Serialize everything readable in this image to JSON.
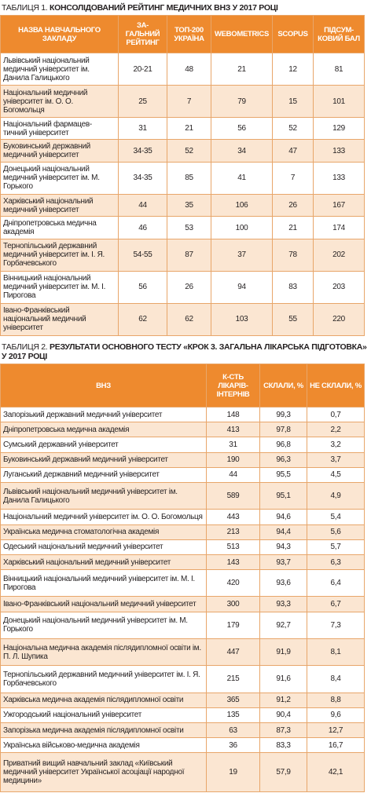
{
  "table1": {
    "label": "ТАБЛИЦЯ 1.",
    "title": "КОНСОЛІДОВАНИЙ РЕЙТИНГ МЕДИЧНИХ ВНЗ У 2017 РОЦІ",
    "headers": [
      "НАЗВА НАВЧАЛЬНОГО ЗАКЛАДУ",
      "ЗА-ГАЛЬНИЙ РЕЙТИНГ",
      "ТОП-200 УКРАЇНА",
      "WEBOMETRICS",
      "SCOPUS",
      "ПІДСУМ-КОВИЙ БАЛ"
    ],
    "rows": [
      [
        "Львівський національний медичний університет ім. Данила Галицького",
        "20-21",
        "48",
        "21",
        "12",
        "81"
      ],
      [
        "Національний медичний університет ім. О. О. Богомольця",
        "25",
        "7",
        "79",
        "15",
        "101"
      ],
      [
        "Національний фармацев-тичний університет",
        "31",
        "21",
        "56",
        "52",
        "129"
      ],
      [
        "Буковинський державний медичний університет",
        "34-35",
        "52",
        "34",
        "47",
        "133"
      ],
      [
        "Донецький національний медичний університет ім. М. Горького",
        "34-35",
        "85",
        "41",
        "7",
        "133"
      ],
      [
        "Харківський національний медичний університет",
        "44",
        "35",
        "106",
        "26",
        "167"
      ],
      [
        "Дніпропетровська медична академія",
        "46",
        "53",
        "100",
        "21",
        "174"
      ],
      [
        "Тернопільський державний медичний університет ім. І. Я. Горбачевського",
        "54-55",
        "87",
        "37",
        "78",
        "202"
      ],
      [
        "Вінницький національний медичний університет ім. М. І. Пирогова",
        "56",
        "26",
        "94",
        "83",
        "203"
      ],
      [
        "Івано-Франківський національний медичний університет",
        "62",
        "62",
        "103",
        "55",
        "220"
      ]
    ]
  },
  "table2": {
    "label": "ТАБЛИЦЯ 2.",
    "title": "РЕЗУЛЬТАТИ ОСНОВНОГО ТЕСТУ «КРОК 3. ЗАГАЛЬНА ЛІКАРСЬКА ПІДГОТОВКА» У 2017 РОЦІ",
    "headers": [
      "ВНЗ",
      "К-СТЬ ЛІКАРІВ-ІНТЕРНІВ",
      "СКЛАЛИ, %",
      "НЕ СКЛАЛИ, %"
    ],
    "rows": [
      [
        "Запорізький державний медичний університет",
        "148",
        "99,3",
        "0,7"
      ],
      [
        "Дніпропетровська медична академія",
        "413",
        "97,8",
        "2,2"
      ],
      [
        "Сумський державний університет",
        "31",
        "96,8",
        "3,2"
      ],
      [
        "Буковинський державний медичний університет",
        "190",
        "96,3",
        "3,7"
      ],
      [
        "Луганський державний медичний університет",
        "44",
        "95,5",
        "4,5"
      ],
      [
        "Львівський національний медичний університет ім. Данила Галицького",
        "589",
        "95,1",
        "4,9"
      ],
      [
        "Національний медичний університет ім. О. О. Богомольця",
        "443",
        "94,6",
        "5,4"
      ],
      [
        "Українська медична стоматологічна академія",
        "213",
        "94,4",
        "5,6"
      ],
      [
        "Одеський національний медичний університет",
        "513",
        "94,3",
        "5,7"
      ],
      [
        "Харківський національний медичний університет",
        "143",
        "93,7",
        "6,3"
      ],
      [
        "Вінницький національний медичний університет ім. М. І. Пирогова",
        "420",
        "93,6",
        "6,4"
      ],
      [
        "Івано-Франківський національний медичний університет",
        "300",
        "93,3",
        "6,7"
      ],
      [
        "Донецький національний медичний університет ім. М. Горького",
        "179",
        "92,7",
        "7,3"
      ],
      [
        "Національна медична академія післядипломної освіти ім. П. Л. Шупика",
        "447",
        "91,9",
        "8,1"
      ],
      [
        "Тернопільський державний медичний університет ім. І. Я. Горбачевського",
        "215",
        "91,6",
        "8,4"
      ],
      [
        "Харківська медична академія післядипломної освіти",
        "365",
        "91,2",
        "8,8"
      ],
      [
        "Ужгородський національний університет",
        "135",
        "90,4",
        "9,6"
      ],
      [
        "Запорізька медична академія післядипломної освіти",
        "63",
        "87,3",
        "12,7"
      ],
      [
        "Українська військово-медична академія",
        "36",
        "83,3",
        "16,7"
      ],
      [
        "Приватний вищий навчальний заклад «Київський медичний університет Української асоціації народної медицини»",
        "19",
        "57,9",
        "42,1"
      ]
    ]
  }
}
